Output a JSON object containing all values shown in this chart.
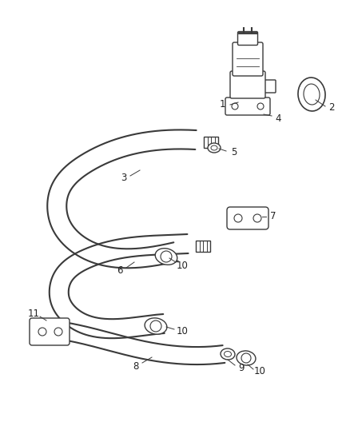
{
  "background_color": "#ffffff",
  "line_color": "#3a3a3a",
  "label_color": "#222222",
  "fig_width": 4.38,
  "fig_height": 5.33,
  "dpi": 100
}
